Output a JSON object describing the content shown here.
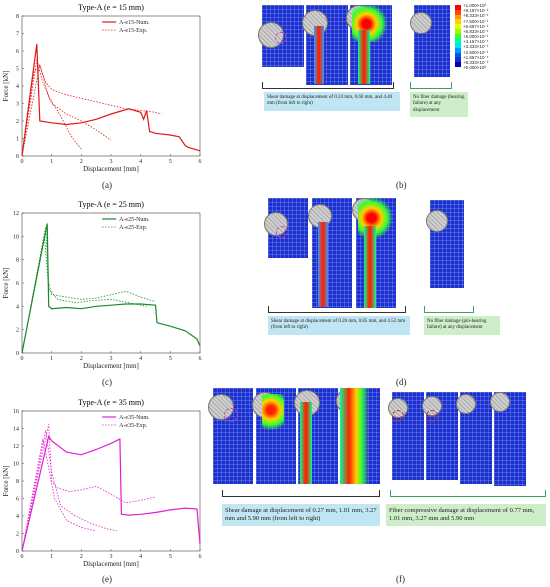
{
  "captions": {
    "a": "(a)",
    "b": "(b)",
    "c": "(c)",
    "d": "(d)",
    "e": "(e)",
    "f": "(f)"
  },
  "notes": {
    "b_shear": "Shear damage at displacement of 0.24 mm, 0.60 mm, and 4.40 mm (from left to right)",
    "b_fiber": "No fiber damage (bearing failure) at any displacement",
    "d_shear": "Shear damage at displacement of 0.26 mm, 0.85 mm, and 4.52 mm (from left to right)",
    "d_fiber": "No fiber damage (pin-bearing failure) at any displacement",
    "f_shear": "Shear damage at displacement of 0.27 mm, 1.01 mm, 3.27 mm and 5.90 mm (from left to right)",
    "f_fiber": "Fiber compressive damage at displacement of 0.77 mm, 1.01 mm, 3.27 mm and 5.90 mm"
  },
  "colorbar_labels": [
    "+1.000×10⁰",
    "+9.167×10⁻¹",
    "+8.333×10⁻¹",
    "+7.500×10⁻¹",
    "+6.667×10⁻¹",
    "+5.833×10⁻¹",
    "+5.000×10⁻¹",
    "+4.167×10⁻¹",
    "+3.333×10⁻¹",
    "+2.500×10⁻¹",
    "+1.667×10⁻¹",
    "+8.333×10⁻²",
    "+0.000×10⁰"
  ],
  "colorbar_colors": [
    "#ff0000",
    "#ff4d00",
    "#ff9900",
    "#ffd000",
    "#e6ff00",
    "#99ff00",
    "#33ff33",
    "#00ff99",
    "#00e6e6",
    "#0099ff",
    "#0055ff",
    "#1a2fd0",
    "#0000c0"
  ],
  "chart_data": [
    {
      "type": "line",
      "title": "Type-A (e = 15 mm)",
      "xlabel": "Displacement [mm]",
      "ylabel": "Force [kN]",
      "xlim": [
        0,
        6
      ],
      "ylim": [
        0,
        8
      ],
      "xticks": [
        0,
        1,
        2,
        3,
        4,
        5,
        6
      ],
      "yticks": [
        0,
        1,
        2,
        3,
        4,
        5,
        6,
        7,
        8
      ],
      "color": "#e01818",
      "series": [
        {
          "name": "A-e15-Num.",
          "style": "solid",
          "x": [
            0,
            0.5,
            0.6,
            1.0,
            1.5,
            2.0,
            2.5,
            3.0,
            3.4,
            3.6,
            4.0,
            4.1,
            4.2,
            4.3,
            4.5,
            5.0,
            5.3,
            5.5,
            5.6,
            6.0
          ],
          "y": [
            0,
            6.4,
            2.0,
            1.9,
            1.8,
            1.9,
            2.1,
            2.4,
            2.6,
            2.7,
            2.5,
            2.1,
            2.6,
            1.4,
            1.3,
            1.2,
            1.1,
            0.6,
            0.5,
            0.3
          ]
        },
        {
          "name": "A-e15-Exp.",
          "style": "dot",
          "x": [
            0,
            0.4,
            0.6,
            0.8,
            1.0,
            1.5,
            2.0,
            2.5,
            3.0,
            3.5,
            4.0,
            4.5,
            4.7
          ],
          "y": [
            0,
            4.8,
            5.2,
            4.2,
            3.8,
            3.5,
            3.3,
            3.1,
            2.9,
            2.7,
            2.6,
            2.5,
            2.4
          ]
        },
        {
          "name": "",
          "style": "dot",
          "x": [
            0,
            0.5,
            0.7,
            1.0,
            1.5,
            2.0,
            2.5,
            3.0
          ],
          "y": [
            0,
            5.5,
            4.2,
            3.0,
            2.4,
            2.0,
            1.5,
            0.9
          ]
        },
        {
          "name": "",
          "style": "dot",
          "x": [
            0,
            0.6,
            0.9,
            1.3,
            1.6,
            1.8,
            2.0
          ],
          "y": [
            0,
            5.2,
            3.4,
            2.3,
            1.3,
            0.8,
            0.4
          ]
        }
      ]
    },
    {
      "type": "line",
      "title": "Type-A (e = 25 mm)",
      "xlabel": "Displacement [mm]",
      "ylabel": "Force [kN]",
      "xlim": [
        0,
        6
      ],
      "ylim": [
        0,
        12
      ],
      "xticks": [
        0,
        1,
        2,
        3,
        4,
        5,
        6
      ],
      "yticks": [
        0,
        2,
        4,
        6,
        8,
        10,
        12
      ],
      "color": "#1a8a2a",
      "series": [
        {
          "name": "A-e25-Num.",
          "style": "solid",
          "x": [
            0,
            0.85,
            0.9,
            1.0,
            1.5,
            2.0,
            2.5,
            3.0,
            3.5,
            4.0,
            4.5,
            4.55,
            5.0,
            5.5,
            5.9,
            6.0
          ],
          "y": [
            0,
            11.1,
            4.0,
            3.8,
            3.9,
            3.8,
            4.0,
            4.1,
            4.2,
            4.2,
            4.1,
            2.6,
            2.3,
            1.9,
            1.2,
            0.6
          ]
        },
        {
          "name": "A-e25-Exp.",
          "style": "dot",
          "x": [
            0,
            0.8,
            0.9,
            1.0,
            1.5,
            2.0,
            2.5,
            3.0,
            3.5,
            4.0,
            4.5
          ],
          "y": [
            0,
            10.8,
            6.0,
            5.0,
            4.8,
            4.6,
            4.7,
            5.0,
            5.3,
            4.8,
            4.4
          ]
        },
        {
          "name": "",
          "style": "dot",
          "x": [
            0,
            0.75,
            0.9,
            1.2,
            1.8,
            2.4,
            3.0,
            3.6,
            4.2
          ],
          "y": [
            0,
            10.2,
            5.5,
            4.6,
            4.3,
            4.5,
            4.6,
            4.3,
            4.0
          ]
        }
      ]
    },
    {
      "type": "line",
      "title": "Type-A (e = 35 mm)",
      "xlabel": "Displacement [mm]",
      "ylabel": "Force [kN]",
      "xlim": [
        0,
        6
      ],
      "ylim": [
        0,
        16
      ],
      "xticks": [
        0,
        1,
        2,
        3,
        4,
        5,
        6
      ],
      "yticks": [
        0,
        2,
        4,
        6,
        8,
        10,
        12,
        14,
        16
      ],
      "color": "#e020d0",
      "series": [
        {
          "name": "A-e35-Num.",
          "style": "solid",
          "x": [
            0,
            0.9,
            1.0,
            1.5,
            2.0,
            2.5,
            3.0,
            3.3,
            3.35,
            3.6,
            4.0,
            4.5,
            5.0,
            5.5,
            5.9,
            6.0
          ],
          "y": [
            0,
            13.1,
            12.6,
            11.3,
            11.0,
            11.6,
            12.3,
            12.8,
            4.2,
            4.1,
            4.2,
            4.4,
            4.7,
            4.9,
            4.8,
            0.8
          ]
        },
        {
          "name": "A-e35-Exp.",
          "style": "dot",
          "x": [
            0,
            0.9,
            1.0,
            1.2,
            1.6,
            2.0,
            2.5,
            3.0,
            3.5,
            4.0,
            4.5
          ],
          "y": [
            0,
            14.5,
            8.0,
            7.2,
            6.8,
            7.0,
            7.4,
            6.5,
            5.5,
            5.8,
            6.2
          ]
        },
        {
          "name": "",
          "style": "dot",
          "x": [
            0,
            0.8,
            1.0,
            1.3,
            1.8,
            2.3,
            2.8,
            3.2
          ],
          "y": [
            0,
            13.8,
            9.0,
            5.2,
            4.0,
            3.2,
            2.6,
            2.3
          ]
        },
        {
          "name": "",
          "style": "dot",
          "x": [
            0,
            0.7,
            0.9,
            1.1,
            1.5,
            2.0,
            2.5
          ],
          "y": [
            0,
            12.8,
            9.5,
            6.0,
            3.5,
            2.7,
            2.3
          ]
        }
      ]
    }
  ]
}
